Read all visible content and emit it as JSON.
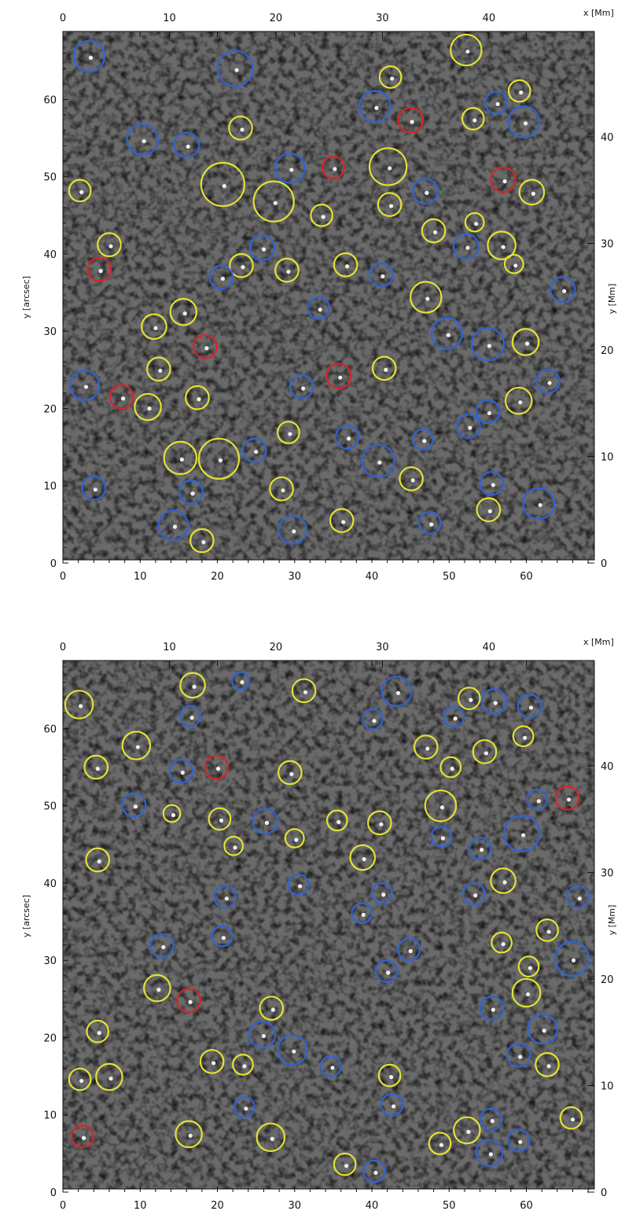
{
  "colors": {
    "blue": "#2f63d6",
    "yellow": "#e4e233",
    "red": "#d8242a"
  },
  "panels": [
    {
      "id": "top",
      "x_arcsec_ticks": [
        "0",
        "10",
        "20",
        "30",
        "40",
        "50",
        "60"
      ],
      "y_arcsec_ticks": [
        "0",
        "10",
        "20",
        "30",
        "40",
        "50",
        "60"
      ],
      "x_mm_ticks": [
        "0",
        "10",
        "20",
        "30",
        "40"
      ],
      "y_mm_ticks": [
        "0",
        "10",
        "20",
        "30",
        "40"
      ],
      "left_label": "y [arcsec]",
      "right_label": "y [Mm]",
      "top_label": "x [Mm]",
      "features": [
        {
          "c": "blue",
          "x": 3.4,
          "y": 65.6,
          "r": 2.0
        },
        {
          "c": "blue",
          "x": 22.3,
          "y": 64.0,
          "r": 2.3
        },
        {
          "c": "yellow",
          "x": 52.2,
          "y": 66.4,
          "r": 2.0
        },
        {
          "c": "yellow",
          "x": 42.4,
          "y": 62.9,
          "r": 1.4
        },
        {
          "c": "yellow",
          "x": 59.1,
          "y": 61.1,
          "r": 1.4
        },
        {
          "c": "blue",
          "x": 40.4,
          "y": 59.1,
          "r": 2.0
        },
        {
          "c": "blue",
          "x": 56.1,
          "y": 59.6,
          "r": 1.4
        },
        {
          "c": "red",
          "x": 45.0,
          "y": 57.3,
          "r": 1.6
        },
        {
          "c": "yellow",
          "x": 53.1,
          "y": 57.5,
          "r": 1.4
        },
        {
          "c": "blue",
          "x": 59.7,
          "y": 57.1,
          "r": 2.0
        },
        {
          "c": "yellow",
          "x": 23.0,
          "y": 56.3,
          "r": 1.5
        },
        {
          "c": "blue",
          "x": 10.3,
          "y": 54.8,
          "r": 2.0
        },
        {
          "c": "blue",
          "x": 16.0,
          "y": 54.1,
          "r": 1.6
        },
        {
          "c": "yellow",
          "x": 42.1,
          "y": 51.3,
          "r": 2.4
        },
        {
          "c": "red",
          "x": 35.0,
          "y": 51.2,
          "r": 1.4
        },
        {
          "c": "blue",
          "x": 29.4,
          "y": 51.1,
          "r": 1.9
        },
        {
          "c": "red",
          "x": 57.0,
          "y": 49.6,
          "r": 1.6
        },
        {
          "c": "yellow",
          "x": 20.7,
          "y": 49.0,
          "r": 2.8
        },
        {
          "c": "yellow",
          "x": 2.2,
          "y": 48.2,
          "r": 1.4
        },
        {
          "c": "blue",
          "x": 46.9,
          "y": 48.1,
          "r": 1.6
        },
        {
          "c": "yellow",
          "x": 60.7,
          "y": 48.0,
          "r": 1.6
        },
        {
          "c": "yellow",
          "x": 27.3,
          "y": 46.8,
          "r": 2.6
        },
        {
          "c": "yellow",
          "x": 42.3,
          "y": 46.4,
          "r": 1.5
        },
        {
          "c": "yellow",
          "x": 33.5,
          "y": 45.0,
          "r": 1.4
        },
        {
          "c": "yellow",
          "x": 53.3,
          "y": 44.1,
          "r": 1.2
        },
        {
          "c": "yellow",
          "x": 48.0,
          "y": 43.0,
          "r": 1.5
        },
        {
          "c": "yellow",
          "x": 6.0,
          "y": 41.2,
          "r": 1.5
        },
        {
          "c": "yellow",
          "x": 56.8,
          "y": 41.1,
          "r": 1.8
        },
        {
          "c": "blue",
          "x": 52.2,
          "y": 41.0,
          "r": 1.6
        },
        {
          "c": "blue",
          "x": 25.8,
          "y": 40.8,
          "r": 1.6
        },
        {
          "c": "yellow",
          "x": 23.1,
          "y": 38.5,
          "r": 1.5
        },
        {
          "c": "yellow",
          "x": 36.6,
          "y": 38.6,
          "r": 1.5
        },
        {
          "c": "yellow",
          "x": 58.4,
          "y": 38.7,
          "r": 1.2
        },
        {
          "c": "red",
          "x": 4.7,
          "y": 38.0,
          "r": 1.5
        },
        {
          "c": "yellow",
          "x": 29.0,
          "y": 37.9,
          "r": 1.5
        },
        {
          "c": "blue",
          "x": 20.5,
          "y": 37.0,
          "r": 1.5
        },
        {
          "c": "blue",
          "x": 41.2,
          "y": 37.3,
          "r": 1.5
        },
        {
          "c": "blue",
          "x": 64.7,
          "y": 35.4,
          "r": 1.6
        },
        {
          "c": "yellow",
          "x": 47.0,
          "y": 34.4,
          "r": 2.0
        },
        {
          "c": "yellow",
          "x": 15.6,
          "y": 32.5,
          "r": 1.7
        },
        {
          "c": "blue",
          "x": 33.1,
          "y": 33.0,
          "r": 1.4
        },
        {
          "c": "yellow",
          "x": 11.8,
          "y": 30.6,
          "r": 1.6
        },
        {
          "c": "blue",
          "x": 49.7,
          "y": 29.7,
          "r": 2.0
        },
        {
          "c": "blue",
          "x": 55.0,
          "y": 28.3,
          "r": 2.1
        },
        {
          "c": "yellow",
          "x": 59.9,
          "y": 28.6,
          "r": 1.7
        },
        {
          "c": "red",
          "x": 18.4,
          "y": 28.0,
          "r": 1.5
        },
        {
          "c": "yellow",
          "x": 12.4,
          "y": 25.1,
          "r": 1.5
        },
        {
          "c": "yellow",
          "x": 41.6,
          "y": 25.2,
          "r": 1.5
        },
        {
          "c": "red",
          "x": 35.7,
          "y": 24.2,
          "r": 1.6
        },
        {
          "c": "blue",
          "x": 2.8,
          "y": 23.0,
          "r": 1.9
        },
        {
          "c": "blue",
          "x": 62.8,
          "y": 23.5,
          "r": 1.5
        },
        {
          "c": "blue",
          "x": 30.9,
          "y": 22.8,
          "r": 1.5
        },
        {
          "c": "red",
          "x": 7.6,
          "y": 21.5,
          "r": 1.5
        },
        {
          "c": "yellow",
          "x": 17.4,
          "y": 21.4,
          "r": 1.5
        },
        {
          "c": "yellow",
          "x": 59.0,
          "y": 21.0,
          "r": 1.7
        },
        {
          "c": "yellow",
          "x": 11.0,
          "y": 20.2,
          "r": 1.7
        },
        {
          "c": "blue",
          "x": 55.0,
          "y": 19.6,
          "r": 1.5
        },
        {
          "c": "blue",
          "x": 52.5,
          "y": 17.7,
          "r": 1.5
        },
        {
          "c": "yellow",
          "x": 29.2,
          "y": 16.9,
          "r": 1.4
        },
        {
          "c": "blue",
          "x": 36.8,
          "y": 16.3,
          "r": 1.5
        },
        {
          "c": "blue",
          "x": 46.6,
          "y": 16.0,
          "r": 1.3
        },
        {
          "c": "blue",
          "x": 24.8,
          "y": 14.6,
          "r": 1.5
        },
        {
          "c": "yellow",
          "x": 15.2,
          "y": 13.6,
          "r": 2.1
        },
        {
          "c": "yellow",
          "x": 20.2,
          "y": 13.5,
          "r": 2.6
        },
        {
          "c": "blue",
          "x": 40.8,
          "y": 13.2,
          "r": 2.1
        },
        {
          "c": "yellow",
          "x": 45.1,
          "y": 10.9,
          "r": 1.5
        },
        {
          "c": "blue",
          "x": 55.5,
          "y": 10.3,
          "r": 1.5
        },
        {
          "c": "blue",
          "x": 4.0,
          "y": 9.7,
          "r": 1.5
        },
        {
          "c": "yellow",
          "x": 28.3,
          "y": 9.6,
          "r": 1.5
        },
        {
          "c": "blue",
          "x": 16.6,
          "y": 9.2,
          "r": 1.5
        },
        {
          "c": "blue",
          "x": 61.6,
          "y": 7.7,
          "r": 2.0
        },
        {
          "c": "yellow",
          "x": 55.1,
          "y": 6.9,
          "r": 1.5
        },
        {
          "c": "yellow",
          "x": 36.1,
          "y": 5.5,
          "r": 1.5
        },
        {
          "c": "blue",
          "x": 47.5,
          "y": 5.2,
          "r": 1.4
        },
        {
          "c": "blue",
          "x": 14.3,
          "y": 4.9,
          "r": 1.9
        },
        {
          "c": "blue",
          "x": 29.7,
          "y": 4.3,
          "r": 1.8
        },
        {
          "c": "yellow",
          "x": 18.0,
          "y": 2.9,
          "r": 1.5
        }
      ]
    },
    {
      "id": "bottom",
      "x_arcsec_ticks": [
        "0",
        "10",
        "20",
        "30",
        "40",
        "50",
        "60"
      ],
      "y_arcsec_ticks": [
        "0",
        "10",
        "20",
        "30",
        "40",
        "50",
        "60"
      ],
      "x_mm_ticks": [
        "0",
        "10",
        "20",
        "30",
        "40"
      ],
      "y_mm_ticks": [
        "0",
        "10",
        "20",
        "30",
        "40"
      ],
      "left_label": "y [arcsec]",
      "right_label": "y [Mm]",
      "top_label": "x [Mm]",
      "features": [
        {
          "c": "blue",
          "x": 23.0,
          "y": 66.2,
          "r": 1.1
        },
        {
          "c": "yellow",
          "x": 16.8,
          "y": 65.6,
          "r": 1.6
        },
        {
          "c": "yellow",
          "x": 31.2,
          "y": 64.9,
          "r": 1.5
        },
        {
          "c": "blue",
          "x": 43.2,
          "y": 64.8,
          "r": 1.9
        },
        {
          "c": "yellow",
          "x": 52.6,
          "y": 63.9,
          "r": 1.4
        },
        {
          "c": "blue",
          "x": 55.8,
          "y": 63.5,
          "r": 1.6
        },
        {
          "c": "blue",
          "x": 60.4,
          "y": 62.9,
          "r": 1.5
        },
        {
          "c": "yellow",
          "x": 2.1,
          "y": 63.1,
          "r": 1.8
        },
        {
          "c": "blue",
          "x": 16.5,
          "y": 61.6,
          "r": 1.3
        },
        {
          "c": "blue",
          "x": 40.1,
          "y": 61.2,
          "r": 1.3
        },
        {
          "c": "blue",
          "x": 50.6,
          "y": 61.5,
          "r": 1.3
        },
        {
          "c": "yellow",
          "x": 59.6,
          "y": 59.0,
          "r": 1.3
        },
        {
          "c": "yellow",
          "x": 9.5,
          "y": 57.8,
          "r": 1.8
        },
        {
          "c": "yellow",
          "x": 47.0,
          "y": 57.6,
          "r": 1.5
        },
        {
          "c": "yellow",
          "x": 54.6,
          "y": 57.0,
          "r": 1.5
        },
        {
          "c": "yellow",
          "x": 4.3,
          "y": 55.0,
          "r": 1.5
        },
        {
          "c": "blue",
          "x": 15.3,
          "y": 54.5,
          "r": 1.5
        },
        {
          "c": "red",
          "x": 19.9,
          "y": 55.0,
          "r": 1.5
        },
        {
          "c": "yellow",
          "x": 50.2,
          "y": 55.0,
          "r": 1.3
        },
        {
          "c": "yellow",
          "x": 29.4,
          "y": 54.3,
          "r": 1.5
        },
        {
          "c": "yellow",
          "x": 48.9,
          "y": 50.0,
          "r": 2.0
        },
        {
          "c": "blue",
          "x": 61.4,
          "y": 50.8,
          "r": 1.3
        },
        {
          "c": "red",
          "x": 65.3,
          "y": 51.0,
          "r": 1.5
        },
        {
          "c": "blue",
          "x": 9.2,
          "y": 50.1,
          "r": 1.5
        },
        {
          "c": "yellow",
          "x": 14.1,
          "y": 49.0,
          "r": 1.1
        },
        {
          "c": "yellow",
          "x": 20.3,
          "y": 48.3,
          "r": 1.4
        },
        {
          "c": "blue",
          "x": 26.2,
          "y": 48.0,
          "r": 1.6
        },
        {
          "c": "yellow",
          "x": 35.5,
          "y": 48.1,
          "r": 1.3
        },
        {
          "c": "yellow",
          "x": 41.0,
          "y": 47.8,
          "r": 1.5
        },
        {
          "c": "blue",
          "x": 49.0,
          "y": 46.0,
          "r": 1.3
        },
        {
          "c": "blue",
          "x": 59.4,
          "y": 46.4,
          "r": 2.3
        },
        {
          "c": "yellow",
          "x": 30.0,
          "y": 45.8,
          "r": 1.2
        },
        {
          "c": "yellow",
          "x": 22.1,
          "y": 44.8,
          "r": 1.2
        },
        {
          "c": "blue",
          "x": 54.0,
          "y": 44.5,
          "r": 1.4
        },
        {
          "c": "yellow",
          "x": 4.5,
          "y": 43.0,
          "r": 1.5
        },
        {
          "c": "yellow",
          "x": 38.8,
          "y": 43.3,
          "r": 1.6
        },
        {
          "c": "yellow",
          "x": 57.0,
          "y": 40.3,
          "r": 1.6
        },
        {
          "c": "blue",
          "x": 30.5,
          "y": 39.8,
          "r": 1.3
        },
        {
          "c": "blue",
          "x": 41.3,
          "y": 38.7,
          "r": 1.3
        },
        {
          "c": "blue",
          "x": 53.2,
          "y": 38.6,
          "r": 1.4
        },
        {
          "c": "blue",
          "x": 21.0,
          "y": 38.2,
          "r": 1.4
        },
        {
          "c": "blue",
          "x": 66.7,
          "y": 38.2,
          "r": 1.4
        },
        {
          "c": "blue",
          "x": 38.7,
          "y": 36.1,
          "r": 1.3
        },
        {
          "c": "yellow",
          "x": 62.7,
          "y": 33.9,
          "r": 1.4
        },
        {
          "c": "blue",
          "x": 20.6,
          "y": 33.1,
          "r": 1.3
        },
        {
          "c": "yellow",
          "x": 56.8,
          "y": 32.3,
          "r": 1.3
        },
        {
          "c": "blue",
          "x": 12.8,
          "y": 31.9,
          "r": 1.5
        },
        {
          "c": "blue",
          "x": 44.8,
          "y": 31.4,
          "r": 1.4
        },
        {
          "c": "blue",
          "x": 65.9,
          "y": 30.2,
          "r": 2.2
        },
        {
          "c": "yellow",
          "x": 60.3,
          "y": 29.2,
          "r": 1.3
        },
        {
          "c": "blue",
          "x": 41.9,
          "y": 28.6,
          "r": 1.4
        },
        {
          "c": "yellow",
          "x": 12.2,
          "y": 26.4,
          "r": 1.7
        },
        {
          "c": "yellow",
          "x": 60.0,
          "y": 25.8,
          "r": 1.8
        },
        {
          "c": "red",
          "x": 16.3,
          "y": 24.8,
          "r": 1.5
        },
        {
          "c": "blue",
          "x": 55.5,
          "y": 23.8,
          "r": 1.5
        },
        {
          "c": "yellow",
          "x": 27.0,
          "y": 23.8,
          "r": 1.5
        },
        {
          "c": "yellow",
          "x": 4.5,
          "y": 20.8,
          "r": 1.4
        },
        {
          "c": "blue",
          "x": 62.1,
          "y": 21.1,
          "r": 1.9
        },
        {
          "c": "blue",
          "x": 25.8,
          "y": 20.4,
          "r": 1.7
        },
        {
          "c": "blue",
          "x": 29.7,
          "y": 18.4,
          "r": 1.9
        },
        {
          "c": "blue",
          "x": 59.0,
          "y": 17.7,
          "r": 1.5
        },
        {
          "c": "yellow",
          "x": 19.3,
          "y": 16.9,
          "r": 1.5
        },
        {
          "c": "yellow",
          "x": 23.3,
          "y": 16.5,
          "r": 1.3
        },
        {
          "c": "blue",
          "x": 34.7,
          "y": 16.3,
          "r": 1.3
        },
        {
          "c": "yellow",
          "x": 62.7,
          "y": 16.5,
          "r": 1.5
        },
        {
          "c": "yellow",
          "x": 42.3,
          "y": 15.1,
          "r": 1.4
        },
        {
          "c": "yellow",
          "x": 2.2,
          "y": 14.6,
          "r": 1.4
        },
        {
          "c": "yellow",
          "x": 6.0,
          "y": 14.9,
          "r": 1.7
        },
        {
          "c": "blue",
          "x": 42.6,
          "y": 11.3,
          "r": 1.4
        },
        {
          "c": "blue",
          "x": 23.5,
          "y": 11.0,
          "r": 1.3
        },
        {
          "c": "yellow",
          "x": 65.8,
          "y": 9.6,
          "r": 1.4
        },
        {
          "c": "blue",
          "x": 55.4,
          "y": 9.4,
          "r": 1.4
        },
        {
          "c": "yellow",
          "x": 52.3,
          "y": 8.0,
          "r": 1.7
        },
        {
          "c": "yellow",
          "x": 16.3,
          "y": 7.5,
          "r": 1.7
        },
        {
          "c": "red",
          "x": 2.5,
          "y": 7.2,
          "r": 1.4
        },
        {
          "c": "yellow",
          "x": 26.9,
          "y": 7.1,
          "r": 1.8
        },
        {
          "c": "blue",
          "x": 59.0,
          "y": 6.7,
          "r": 1.4
        },
        {
          "c": "yellow",
          "x": 48.8,
          "y": 6.3,
          "r": 1.4
        },
        {
          "c": "blue",
          "x": 55.2,
          "y": 5.1,
          "r": 1.7
        },
        {
          "c": "yellow",
          "x": 36.5,
          "y": 3.6,
          "r": 1.4
        },
        {
          "c": "blue",
          "x": 40.3,
          "y": 2.7,
          "r": 1.4
        }
      ]
    }
  ]
}
